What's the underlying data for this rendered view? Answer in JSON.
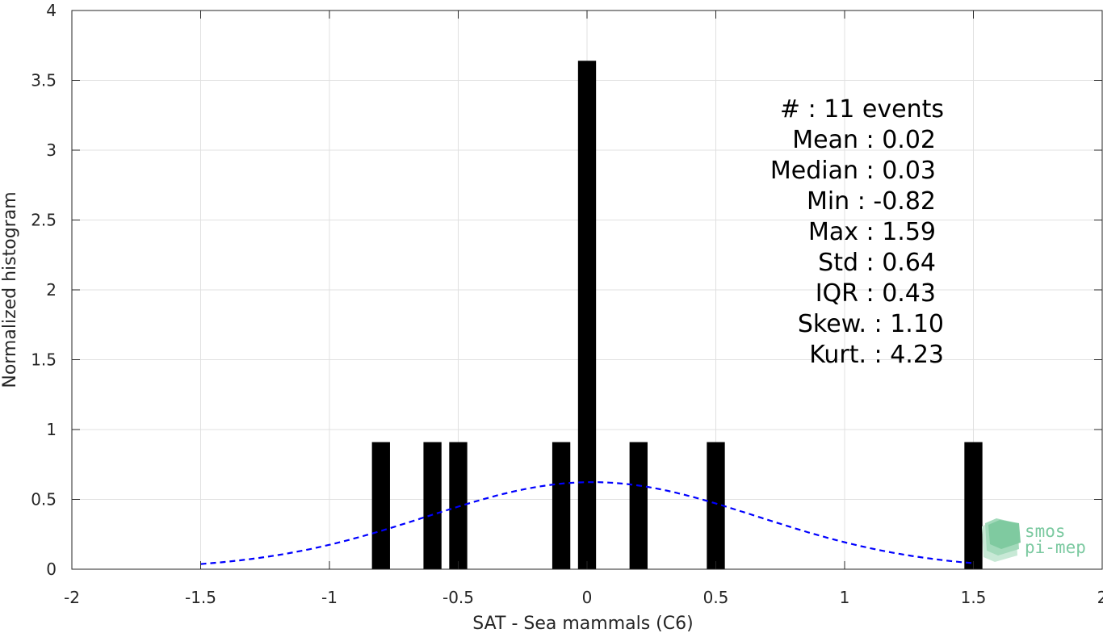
{
  "chart_data": {
    "type": "bar",
    "xlabel": "SAT - Sea mammals (C6)",
    "ylabel": "Normalized histogram",
    "xlim": [
      -2,
      2
    ],
    "ylim": [
      0,
      4
    ],
    "xticks": [
      "-2",
      "-1.5",
      "-1",
      "-0.5",
      "0",
      "0.5",
      "1",
      "1.5",
      "2"
    ],
    "yticks": [
      "0",
      "0.5",
      "1",
      "1.5",
      "2",
      "2.5",
      "3",
      "3.5",
      "4"
    ],
    "grid": true,
    "bar_color": "#000000",
    "bars": [
      {
        "x": -0.8,
        "value": 0.91
      },
      {
        "x": -0.6,
        "value": 0.91
      },
      {
        "x": -0.5,
        "value": 0.91
      },
      {
        "x": -0.1,
        "value": 0.91
      },
      {
        "x": 0.0,
        "value": 3.64
      },
      {
        "x": 0.2,
        "value": 0.91
      },
      {
        "x": 0.5,
        "value": 0.91
      },
      {
        "x": 1.5,
        "value": 0.91
      }
    ],
    "fit_curve": {
      "style": "dashed",
      "color": "#0000ff",
      "distribution": "normal",
      "mean": 0.02,
      "std": 0.64,
      "x_range": [
        -1.5,
        1.5
      ]
    },
    "stats": [
      "#  : 11 events",
      "Mean : 0.02",
      "Median : 0.03",
      "Min : -0.82",
      "Max : 1.59",
      "Std : 0.64",
      "IQR : 0.43",
      "Skew. : 1.10",
      "Kurt. : 4.23"
    ]
  },
  "logo": {
    "line1": "smos",
    "line2": "pi-mep"
  }
}
